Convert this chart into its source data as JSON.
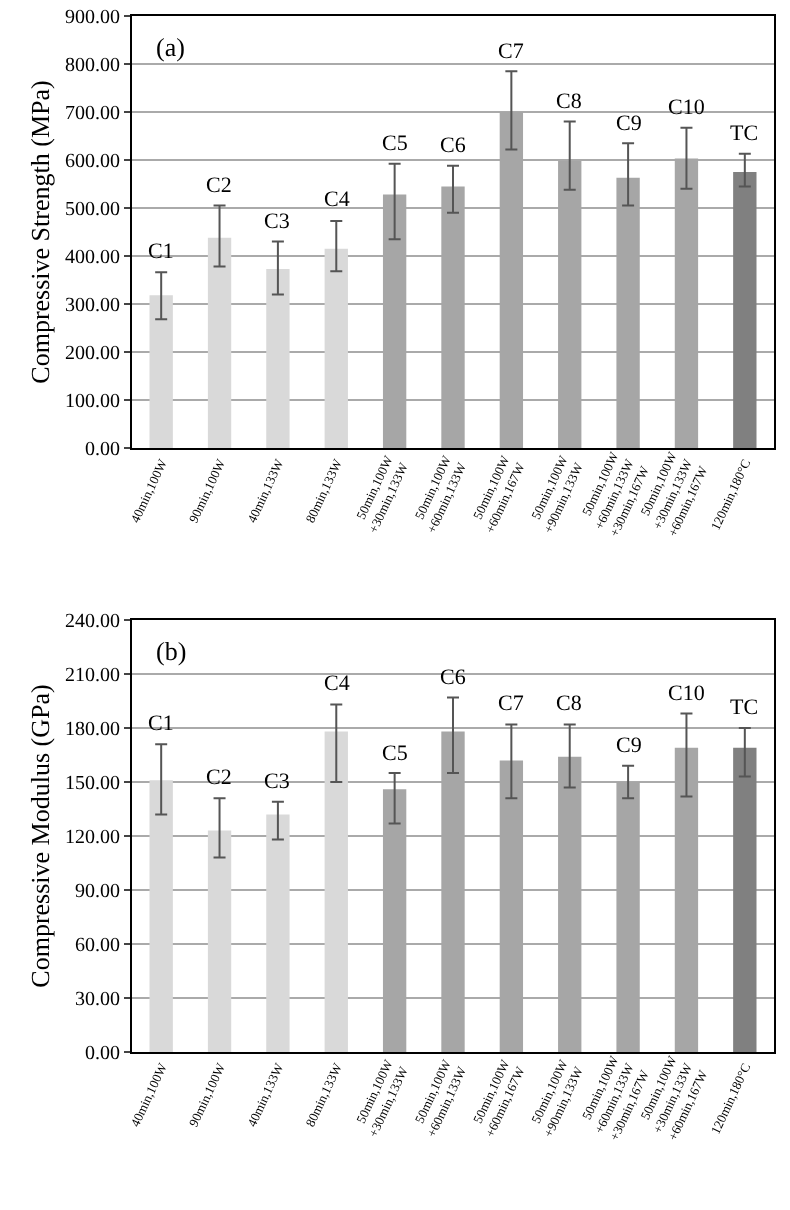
{
  "chart_data": [
    {
      "type": "bar",
      "ylabel": "Compressive Strength (MPa)",
      "categories": [
        "40min,100W",
        "90min,100W",
        "40min,133W",
        "80min,133W",
        "50min,100W\n+30min,133W",
        "50min,100W\n+60min,133W",
        "50min,100W\n+60min,167W",
        "50min,100W\n+90min,133W",
        "50min,100W\n+60min,133W\n+30min,167W",
        "50min,100W\n+30min,133W\n+60min,167W",
        "120min,180°C"
      ],
      "values": [
        318,
        438,
        373,
        415,
        528,
        545,
        700,
        598,
        563,
        603,
        575
      ],
      "errors": [
        [
          268,
          366
        ],
        [
          378,
          505
        ],
        [
          320,
          430
        ],
        [
          368,
          473
        ],
        [
          435,
          592
        ],
        [
          490,
          588
        ],
        [
          622,
          785
        ],
        [
          538,
          680
        ],
        [
          505,
          635
        ],
        [
          540,
          667
        ],
        [
          545,
          613
        ]
      ],
      "colors": [
        "#d9d9d9",
        "#d9d9d9",
        "#d9d9d9",
        "#d9d9d9",
        "#a6a6a6",
        "#a6a6a6",
        "#a6a6a6",
        "#a6a6a6",
        "#a6a6a6",
        "#a6a6a6",
        "#808080"
      ],
      "ylim": [
        0,
        900
      ],
      "yticks": [
        {
          "value": 0,
          "label": "0.00"
        },
        {
          "value": 100,
          "label": "100.00"
        },
        {
          "value": 200,
          "label": "200.00"
        },
        {
          "value": 300,
          "label": "300.00"
        },
        {
          "value": 400,
          "label": "400.00"
        },
        {
          "value": 500,
          "label": "500.00"
        },
        {
          "value": 600,
          "label": "600.00"
        },
        {
          "value": 700,
          "label": "700.00"
        },
        {
          "value": 800,
          "label": "800.00"
        },
        {
          "value": 900,
          "label": "900.00"
        }
      ],
      "grid": "y",
      "annotations": [
        "(a)",
        {
          "text": "C1",
          "x": "40min,100W",
          "y": 366
        },
        {
          "text": "C2",
          "x": "90min,100W",
          "y": 505
        },
        {
          "text": "C3",
          "x": "40min,133W",
          "y": 430
        },
        {
          "text": "C4",
          "x": "80min,133W",
          "y": 473
        },
        {
          "text": "C5",
          "x": "50min,100W\n+30min,133W",
          "y": 592
        },
        {
          "text": "C6",
          "x": "50min,100W\n+60min,133W",
          "y": 588
        },
        {
          "text": "C7",
          "x": "50min,100W\n+60min,167W",
          "y": 785
        },
        {
          "text": "C8",
          "x": "50min,100W\n+90min,133W",
          "y": 680
        },
        {
          "text": "C9",
          "x": "50min,100W\n+60min,133W\n+30min,167W",
          "y": 635
        },
        {
          "text": "C10",
          "x": "50min,100W\n+30min,133W\n+60min,167W",
          "y": 667
        },
        {
          "text": "TC",
          "x": "120min,180°C",
          "y": 613
        }
      ]
    },
    {
      "type": "bar",
      "ylabel": "Compressive Modulus (GPa)",
      "categories": [
        "40min,100W",
        "90min,100W",
        "40min,133W",
        "80min,133W",
        "50min,100W\n+30min,133W",
        "50min,100W\n+60min,133W",
        "50min,100W\n+60min,167W",
        "50min,100W\n+90min,133W",
        "50min,100W\n+60min,133W\n+30min,167W",
        "50min,100W\n+30min,133W\n+60min,167W",
        "120min,180°C"
      ],
      "values": [
        151,
        123,
        132,
        178,
        146,
        178,
        162,
        164,
        150,
        169,
        169
      ],
      "errors": [
        [
          132,
          171
        ],
        [
          108,
          141
        ],
        [
          118,
          139
        ],
        [
          150,
          193
        ],
        [
          127,
          155
        ],
        [
          155,
          197
        ],
        [
          141,
          182
        ],
        [
          147,
          182
        ],
        [
          141,
          159
        ],
        [
          142,
          188
        ],
        [
          153,
          180
        ]
      ],
      "colors": [
        "#d9d9d9",
        "#d9d9d9",
        "#d9d9d9",
        "#d9d9d9",
        "#a6a6a6",
        "#a6a6a6",
        "#a6a6a6",
        "#a6a6a6",
        "#a6a6a6",
        "#a6a6a6",
        "#808080"
      ],
      "ylim": [
        0,
        240
      ],
      "yticks": [
        {
          "value": 0,
          "label": "0.00"
        },
        {
          "value": 30,
          "label": "30.00"
        },
        {
          "value": 60,
          "label": "60.00"
        },
        {
          "value": 90,
          "label": "90.00"
        },
        {
          "value": 120,
          "label": "120.00"
        },
        {
          "value": 150,
          "label": "150.00"
        },
        {
          "value": 180,
          "label": "180.00"
        },
        {
          "value": 210,
          "label": "210.00"
        },
        {
          "value": 240,
          "label": "240.00"
        }
      ],
      "grid": "y",
      "annotations": [
        "(b)",
        {
          "text": "C1",
          "x": "40min,100W",
          "y": 171
        },
        {
          "text": "C2",
          "x": "90min,100W",
          "y": 141
        },
        {
          "text": "C3",
          "x": "40min,133W",
          "y": 139
        },
        {
          "text": "C4",
          "x": "80min,133W",
          "y": 193
        },
        {
          "text": "C5",
          "x": "50min,100W\n+30min,133W",
          "y": 155
        },
        {
          "text": "C6",
          "x": "50min,100W\n+60min,133W",
          "y": 197
        },
        {
          "text": "C7",
          "x": "50min,100W\n+60min,167W",
          "y": 182
        },
        {
          "text": "C8",
          "x": "50min,100W\n+90min,133W",
          "y": 182
        },
        {
          "text": "C9",
          "x": "50min,100W\n+60min,133W\n+30min,167W",
          "y": 159
        },
        {
          "text": "C10",
          "x": "50min,100W\n+30min,133W\n+60min,167W",
          "y": 188
        },
        {
          "text": "TC",
          "x": "120min,180°C",
          "y": 180
        }
      ]
    }
  ]
}
